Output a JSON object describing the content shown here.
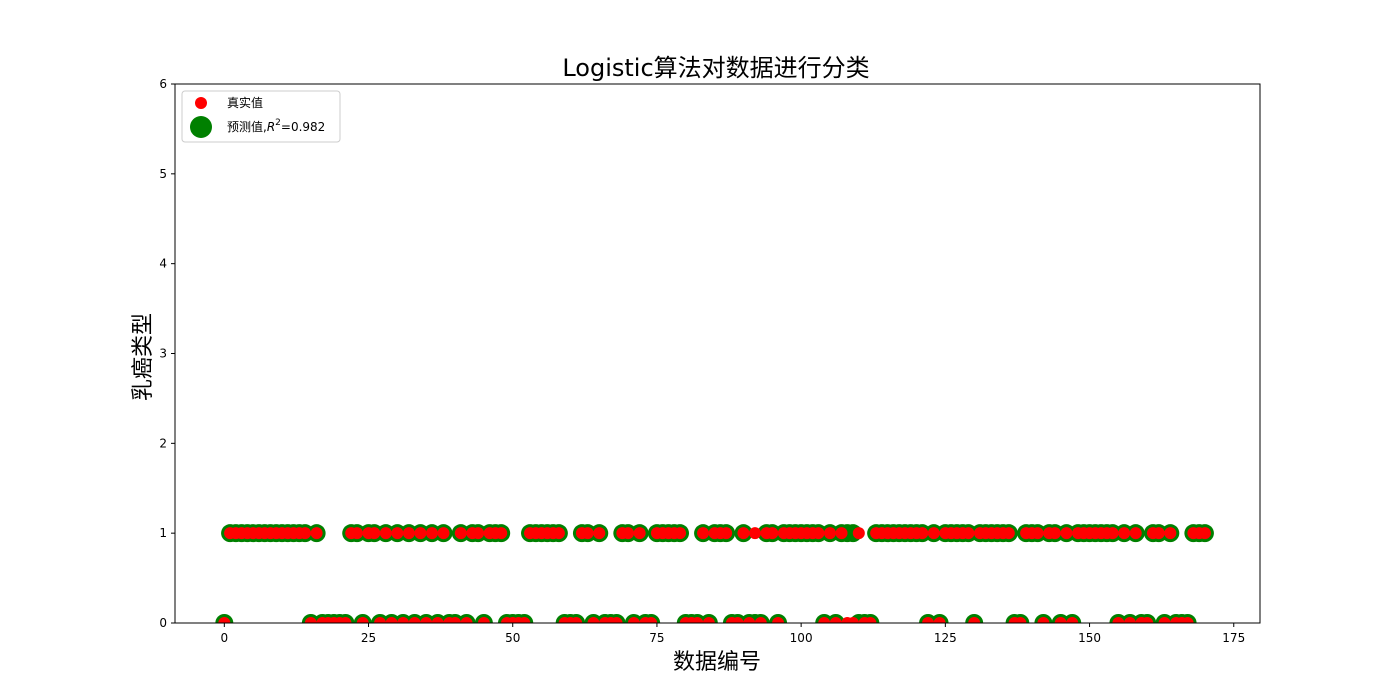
{
  "chart_data": {
    "type": "scatter",
    "title": "Logistic算法对数据进行分类",
    "xlabel": "数据编号",
    "ylabel": "乳癌类型",
    "xlim": [
      -8.55,
      179.55
    ],
    "ylim": [
      0,
      6
    ],
    "xticks": [
      0,
      25,
      50,
      75,
      100,
      125,
      150,
      175
    ],
    "yticks": [
      0,
      1,
      2,
      3,
      4,
      5,
      6
    ],
    "legend": {
      "placement": "top-left"
    },
    "grid": false,
    "colors": {
      "true": "#ff0000",
      "predicted": "#008000"
    },
    "series": [
      {
        "name": "真实值",
        "marker": "small-dot",
        "color": "#ff0000",
        "x": [
          0,
          1,
          2,
          3,
          4,
          5,
          6,
          7,
          8,
          9,
          10,
          11,
          12,
          13,
          14,
          15,
          16,
          17,
          18,
          19,
          20,
          21,
          22,
          23,
          24,
          25,
          26,
          27,
          28,
          29,
          30,
          31,
          32,
          33,
          34,
          35,
          36,
          37,
          38,
          39,
          40,
          41,
          42,
          43,
          44,
          45,
          46,
          47,
          48,
          49,
          50,
          51,
          52,
          53,
          54,
          55,
          56,
          57,
          58,
          59,
          60,
          61,
          62,
          63,
          64,
          65,
          66,
          67,
          68,
          69,
          70,
          71,
          72,
          73,
          74,
          75,
          76,
          77,
          78,
          79,
          80,
          81,
          82,
          83,
          84,
          85,
          86,
          87,
          88,
          89,
          90,
          91,
          92,
          93,
          94,
          95,
          96,
          97,
          98,
          99,
          100,
          101,
          102,
          103,
          104,
          105,
          106,
          107,
          108,
          109,
          110,
          111,
          112,
          113,
          114,
          115,
          116,
          117,
          118,
          119,
          120,
          121,
          122,
          123,
          124,
          125,
          126,
          127,
          128,
          129,
          130,
          131,
          132,
          133,
          134,
          135,
          136,
          137,
          138,
          139,
          140,
          141,
          142,
          143,
          144,
          145,
          146,
          147,
          148,
          149,
          150,
          151,
          152,
          153,
          154,
          155,
          156,
          157,
          158,
          159,
          160,
          161,
          162,
          163,
          164,
          165,
          166,
          167,
          168,
          169,
          170
        ],
        "y": [
          0,
          1,
          1,
          1,
          1,
          1,
          1,
          1,
          1,
          1,
          1,
          1,
          1,
          1,
          1,
          0,
          1,
          0,
          0,
          0,
          0,
          0,
          1,
          1,
          0,
          1,
          1,
          0,
          1,
          0,
          1,
          0,
          1,
          0,
          1,
          0,
          1,
          0,
          1,
          0,
          0,
          1,
          0,
          1,
          1,
          0,
          1,
          1,
          1,
          0,
          0,
          0,
          0,
          1,
          1,
          1,
          1,
          1,
          1,
          0,
          0,
          0,
          1,
          1,
          0,
          1,
          0,
          0,
          0,
          1,
          1,
          0,
          1,
          0,
          0,
          1,
          1,
          1,
          1,
          1,
          0,
          0,
          0,
          1,
          0,
          1,
          1,
          1,
          0,
          0,
          1,
          0,
          1,
          0,
          1,
          1,
          0,
          1,
          1,
          1,
          1,
          1,
          1,
          1,
          0,
          1,
          0,
          1,
          0,
          0,
          1,
          0,
          0,
          1,
          1,
          1,
          1,
          1,
          1,
          1,
          1,
          1,
          0,
          1,
          0,
          1,
          1,
          1,
          1,
          1,
          0,
          1,
          1,
          1,
          1,
          1,
          1,
          0,
          0,
          1,
          1,
          1,
          0,
          1,
          1,
          0,
          1,
          0,
          1,
          1,
          1,
          1,
          1,
          1,
          1,
          0,
          1,
          0,
          1,
          0,
          0,
          1,
          1,
          0,
          1,
          0,
          0,
          0,
          1,
          1,
          1
        ]
      },
      {
        "name": "预测值,R²=0.982",
        "marker": "large-dot",
        "color": "#008000",
        "x": [
          0,
          1,
          2,
          3,
          4,
          5,
          6,
          7,
          8,
          9,
          10,
          11,
          12,
          13,
          14,
          15,
          16,
          17,
          18,
          19,
          20,
          21,
          22,
          23,
          24,
          25,
          26,
          27,
          28,
          29,
          30,
          31,
          32,
          33,
          34,
          35,
          36,
          37,
          38,
          39,
          40,
          41,
          42,
          43,
          44,
          45,
          46,
          47,
          48,
          49,
          50,
          51,
          52,
          53,
          54,
          55,
          56,
          57,
          58,
          59,
          60,
          61,
          62,
          63,
          64,
          65,
          66,
          67,
          68,
          69,
          70,
          71,
          72,
          73,
          74,
          75,
          76,
          77,
          78,
          79,
          80,
          81,
          82,
          83,
          84,
          85,
          86,
          87,
          88,
          89,
          90,
          91,
          92,
          93,
          94,
          95,
          96,
          97,
          98,
          99,
          100,
          101,
          102,
          103,
          104,
          105,
          106,
          107,
          108,
          109,
          110,
          111,
          112,
          113,
          114,
          115,
          116,
          117,
          118,
          119,
          120,
          121,
          122,
          123,
          124,
          125,
          126,
          127,
          128,
          129,
          130,
          131,
          132,
          133,
          134,
          135,
          136,
          137,
          138,
          139,
          140,
          141,
          142,
          143,
          144,
          145,
          146,
          147,
          148,
          149,
          150,
          151,
          152,
          153,
          154,
          155,
          156,
          157,
          158,
          159,
          160,
          161,
          162,
          163,
          164,
          165,
          166,
          167,
          168,
          169,
          170
        ],
        "y": [
          0,
          1,
          1,
          1,
          1,
          1,
          1,
          1,
          1,
          1,
          1,
          1,
          1,
          1,
          1,
          0,
          1,
          0,
          0,
          0,
          0,
          0,
          1,
          1,
          0,
          1,
          1,
          0,
          1,
          0,
          1,
          0,
          1,
          0,
          1,
          0,
          1,
          0,
          1,
          0,
          0,
          1,
          0,
          1,
          1,
          0,
          1,
          1,
          1,
          0,
          0,
          0,
          0,
          1,
          1,
          1,
          1,
          1,
          1,
          0,
          0,
          0,
          1,
          1,
          0,
          1,
          0,
          0,
          0,
          1,
          1,
          0,
          1,
          0,
          0,
          1,
          1,
          1,
          1,
          1,
          0,
          0,
          0,
          1,
          0,
          1,
          1,
          1,
          0,
          0,
          1,
          0,
          0,
          0,
          1,
          1,
          0,
          1,
          1,
          1,
          1,
          1,
          1,
          1,
          0,
          1,
          0,
          1,
          1,
          1,
          0,
          0,
          0,
          1,
          1,
          1,
          1,
          1,
          1,
          1,
          1,
          1,
          0,
          1,
          0,
          1,
          1,
          1,
          1,
          1,
          0,
          1,
          1,
          1,
          1,
          1,
          1,
          0,
          0,
          1,
          1,
          1,
          0,
          1,
          1,
          0,
          1,
          0,
          1,
          1,
          1,
          1,
          1,
          1,
          1,
          0,
          1,
          0,
          1,
          0,
          0,
          1,
          1,
          0,
          1,
          0,
          0,
          0,
          1,
          1,
          1
        ]
      }
    ],
    "legend_entries": {
      "true_label": "真实值",
      "pred_prefix": "预测值,",
      "pred_r": "R",
      "pred_exp": "2",
      "pred_value": "=0.982"
    }
  }
}
